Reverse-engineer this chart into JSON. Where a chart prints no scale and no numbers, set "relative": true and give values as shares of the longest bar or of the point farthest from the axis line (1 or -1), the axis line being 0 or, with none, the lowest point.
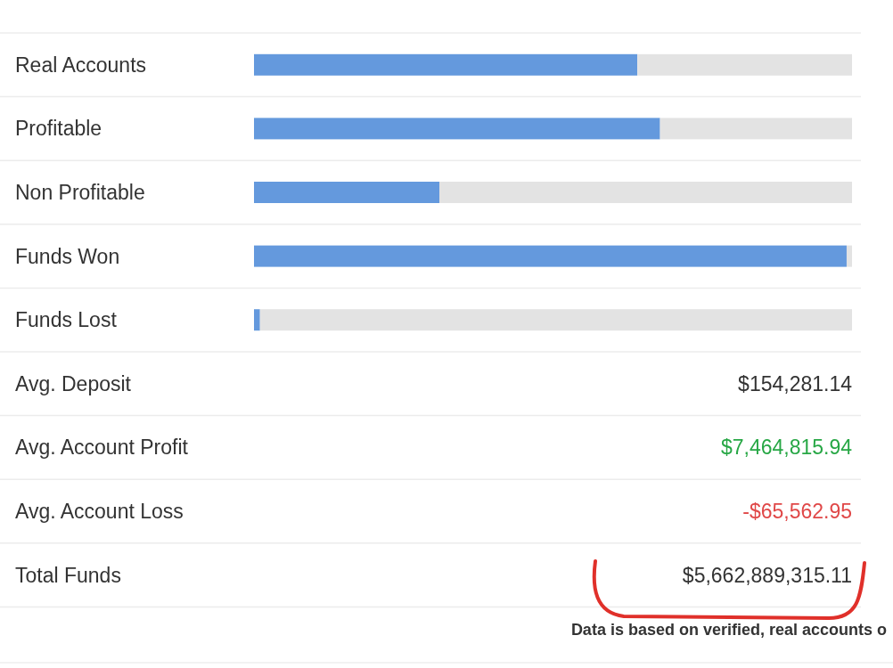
{
  "chart_data": {
    "type": "bar",
    "orientation": "horizontal",
    "relative": true,
    "stacked": true,
    "categories": [
      "Real Accounts",
      "Profitable",
      "Non Profitable",
      "Funds Won",
      "Funds Lost"
    ],
    "series": [
      {
        "color": "#6499dd",
        "values": [
          0.641,
          0.679,
          0.31,
          0.991,
          0.01
        ]
      },
      {
        "color": "#e3e3e3",
        "values": [
          0.359,
          0.321,
          0.69,
          0.009,
          0.99
        ]
      }
    ],
    "annotations": [
      "Avg. Deposit",
      "$154,281.14",
      "Avg. Account Profit",
      "$7,464,815.94",
      "Avg. Account Loss",
      "-$65,562.95",
      "Total Funds",
      "$5,662,889,315.11",
      "Data is based on verified, real accounts o"
    ]
  }
}
